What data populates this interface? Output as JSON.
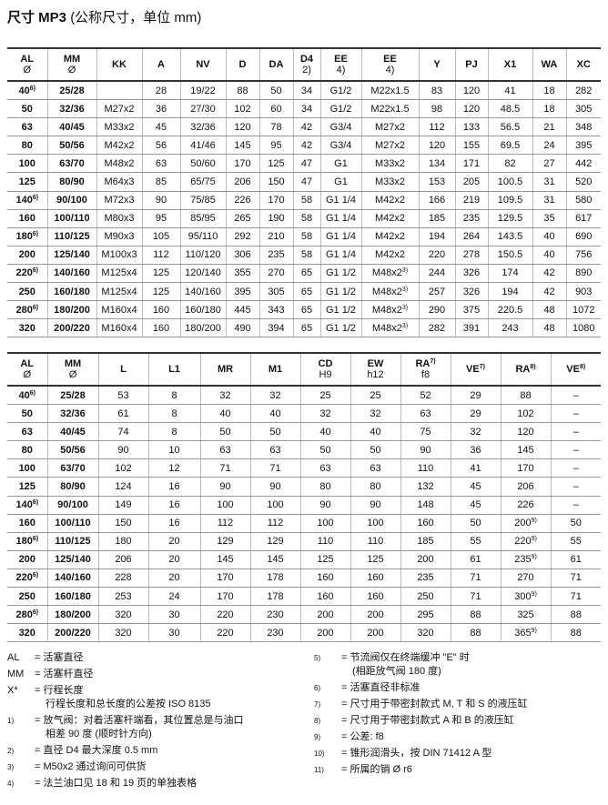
{
  "title": {
    "main": "尺寸 MP3",
    "sub": "(公称尺寸，单位 mm)"
  },
  "table1": {
    "headers": [
      {
        "label": "AL",
        "sub": "Ø"
      },
      {
        "label": "MM",
        "sub": "Ø"
      },
      {
        "label": "KK"
      },
      {
        "label": "A"
      },
      {
        "label": "NV"
      },
      {
        "label": "D"
      },
      {
        "label": "DA"
      },
      {
        "label": "D4",
        "sub": "2)"
      },
      {
        "label": "EE",
        "sub": "4)"
      },
      {
        "label": "EE",
        "sub": "4)"
      },
      {
        "label": "Y"
      },
      {
        "label": "PJ"
      },
      {
        "label": "X1"
      },
      {
        "label": "WA"
      },
      {
        "label": "XC"
      }
    ],
    "rows": [
      [
        {
          "text": "40",
          "note": "6)"
        },
        "25/28",
        null,
        "28",
        "19/22",
        "88",
        "50",
        "34",
        "G1/2",
        "M22x1.5",
        "83",
        "120",
        "41",
        "18",
        "282"
      ],
      [
        "50",
        "32/36",
        "M27x2",
        "36",
        "27/30",
        "102",
        "60",
        "34",
        "G1/2",
        "M22x1.5",
        "98",
        "120",
        "48.5",
        "18",
        "305"
      ],
      [
        "63",
        "40/45",
        "M33x2",
        "45",
        "32/36",
        "120",
        "78",
        "42",
        "G3/4",
        "M27x2",
        "112",
        "133",
        "56.5",
        "21",
        "348"
      ],
      [
        "80",
        "50/56",
        "M42x2",
        "56",
        "41/46",
        "145",
        "95",
        "42",
        "G3/4",
        "M27x2",
        "120",
        "155",
        "69.5",
        "24",
        "395"
      ],
      [
        "100",
        "63/70",
        "M48x2",
        "63",
        "50/60",
        "170",
        "125",
        "47",
        "G1",
        "M33x2",
        "134",
        "171",
        "82",
        "27",
        "442"
      ],
      [
        "125",
        "80/90",
        "M64x3",
        "85",
        "65/75",
        "206",
        "150",
        "47",
        "G1",
        "M33x2",
        "153",
        "205",
        "100.5",
        "31",
        "520"
      ],
      [
        {
          "text": "140",
          "note": "6)"
        },
        "90/100",
        "M72x3",
        "90",
        "75/85",
        "226",
        "170",
        "58",
        "G1 1/4",
        "M42x2",
        "166",
        "219",
        "109.5",
        "31",
        "580"
      ],
      [
        "160",
        "100/110",
        "M80x3",
        "95",
        "85/95",
        "265",
        "190",
        "58",
        "G1 1/4",
        "M42x2",
        "185",
        "235",
        "129.5",
        "35",
        "617"
      ],
      [
        {
          "text": "180",
          "note": "6)"
        },
        "110/125",
        "M90x3",
        "105",
        "95/110",
        "292",
        "210",
        "58",
        "G1 1/4",
        "M42x2",
        "194",
        "264",
        "143.5",
        "40",
        "690"
      ],
      [
        "200",
        "125/140",
        "M100x3",
        "112",
        "110/120",
        "306",
        "235",
        "58",
        "G1 1/4",
        "M42x2",
        "220",
        "278",
        "150.5",
        "40",
        "756"
      ],
      [
        {
          "text": "220",
          "note": "6)"
        },
        "140/160",
        "M125x4",
        "125",
        "120/140",
        "355",
        "270",
        "65",
        "G1 1/2",
        {
          "text": "M48x2",
          "note": "3)"
        },
        "244",
        "326",
        "174",
        "42",
        "890"
      ],
      [
        "250",
        "160/180",
        "M125x4",
        "125",
        "140/160",
        "395",
        "305",
        "65",
        "G1 1/2",
        {
          "text": "M48x2",
          "note": "3)"
        },
        "257",
        "326",
        "194",
        "42",
        "903"
      ],
      [
        {
          "text": "280",
          "note": "6)"
        },
        "180/200",
        "M160x4",
        "160",
        "160/180",
        "445",
        "343",
        "65",
        "G1 1/2",
        {
          "text": "M48x2",
          "note": "3)"
        },
        "290",
        "375",
        "220.5",
        "48",
        "1072"
      ],
      [
        "320",
        "200/220",
        "M160x4",
        "160",
        "180/200",
        "490",
        "394",
        "65",
        "G1 1/2",
        {
          "text": "M48x2",
          "note": "3)"
        },
        "282",
        "391",
        "243",
        "48",
        "1080"
      ]
    ]
  },
  "table2": {
    "headers": [
      {
        "label": "AL",
        "sub": "Ø"
      },
      {
        "label": "MM",
        "sub": "Ø"
      },
      {
        "label": "L"
      },
      {
        "label": "L1"
      },
      {
        "label": "MR"
      },
      {
        "label": "M1"
      },
      {
        "label": "CD",
        "sub": "H9"
      },
      {
        "label": "EW",
        "sub": "h12"
      },
      {
        "label": "RA",
        "note": "7)",
        "sub": "f8"
      },
      {
        "label": "VE",
        "note": "7)"
      },
      {
        "label": "RA",
        "note": "8)"
      },
      {
        "label": "VE",
        "note": "8)"
      }
    ],
    "rows": [
      [
        {
          "text": "40",
          "note": "6)"
        },
        "25/28",
        "53",
        "8",
        "32",
        "32",
        "25",
        "25",
        "52",
        "29",
        "88",
        "–"
      ],
      [
        "50",
        "32/36",
        "61",
        "8",
        "40",
        "40",
        "32",
        "32",
        "63",
        "29",
        "102",
        "–"
      ],
      [
        "63",
        "40/45",
        "74",
        "8",
        "50",
        "50",
        "40",
        "40",
        "75",
        "32",
        "120",
        "–"
      ],
      [
        "80",
        "50/56",
        "90",
        "10",
        "63",
        "63",
        "50",
        "50",
        "90",
        "36",
        "145",
        "–"
      ],
      [
        "100",
        "63/70",
        "102",
        "12",
        "71",
        "71",
        "63",
        "63",
        "110",
        "41",
        "170",
        "–"
      ],
      [
        "125",
        "80/90",
        "124",
        "16",
        "90",
        "90",
        "80",
        "80",
        "132",
        "45",
        "206",
        "–"
      ],
      [
        {
          "text": "140",
          "note": "6)"
        },
        "90/100",
        "149",
        "16",
        "100",
        "100",
        "90",
        "90",
        "148",
        "45",
        "226",
        "–"
      ],
      [
        "160",
        "100/110",
        "150",
        "16",
        "112",
        "112",
        "100",
        "100",
        "160",
        "50",
        {
          "text": "200",
          "note": "9)"
        },
        "50"
      ],
      [
        {
          "text": "180",
          "note": "6)"
        },
        "110/125",
        "180",
        "20",
        "129",
        "129",
        "110",
        "110",
        "185",
        "55",
        {
          "text": "220",
          "note": "9)"
        },
        "55"
      ],
      [
        "200",
        "125/140",
        "206",
        "20",
        "145",
        "145",
        "125",
        "125",
        "200",
        "61",
        {
          "text": "235",
          "note": "9)"
        },
        "61"
      ],
      [
        {
          "text": "220",
          "note": "6)"
        },
        "140/160",
        "228",
        "20",
        "170",
        "178",
        "160",
        "160",
        "235",
        "71",
        "270",
        "71"
      ],
      [
        "250",
        "160/180",
        "253",
        "24",
        "170",
        "178",
        "160",
        "160",
        "250",
        "71",
        {
          "text": "300",
          "note": "9)"
        },
        "71"
      ],
      [
        {
          "text": "280",
          "note": "6)"
        },
        "180/200",
        "320",
        "30",
        "220",
        "230",
        "200",
        "200",
        "295",
        "88",
        "325",
        "88"
      ],
      [
        "320",
        "200/220",
        "320",
        "30",
        "220",
        "230",
        "200",
        "200",
        "320",
        "88",
        {
          "text": "365",
          "note": "9)"
        },
        "88"
      ]
    ]
  },
  "notes": {
    "left": [
      {
        "key": "AL",
        "lines": [
          "= 活塞直径"
        ]
      },
      {
        "key": "MM",
        "lines": [
          "= 活塞杆直径"
        ]
      },
      {
        "key": "X*",
        "lines": [
          "= 行程长度",
          "行程长度和总长度的公差按 ISO 8135"
        ]
      },
      {
        "key": "1)",
        "lines": [
          "= 放气阀：对着活塞杆端看，其位置总是与油口",
          "相差 90 度 (顺时针方向)"
        ]
      },
      {
        "key": "2)",
        "lines": [
          "= 直径 D4 最大深度 0.5 mm"
        ]
      },
      {
        "key": "3)",
        "lines": [
          "= M50x2 通过询问可供货"
        ]
      },
      {
        "key": "4)",
        "lines": [
          "= 法兰油口见 18 和 19 页的单独表格"
        ]
      }
    ],
    "right": [
      {
        "key": "5)",
        "lines": [
          "= 节流阀仅在终端缓冲 \"E\" 时",
          "(相距放气阀 180 度)"
        ]
      },
      {
        "key": "6)",
        "lines": [
          "= 活塞直径非标准"
        ]
      },
      {
        "key": "7)",
        "lines": [
          "= 尺寸用于带密封款式 M, T 和 S 的液压缸"
        ]
      },
      {
        "key": "8)",
        "lines": [
          "= 尺寸用于带密封款式 A 和 B 的液压缸"
        ]
      },
      {
        "key": "9)",
        "lines": [
          "= 公差: f8"
        ]
      },
      {
        "key": "10)",
        "lines": [
          "= 锥形润滑头，按 DIN 71412 A 型"
        ]
      },
      {
        "key": "11)",
        "lines": [
          "= 所属的销 Ø r6"
        ]
      }
    ]
  }
}
